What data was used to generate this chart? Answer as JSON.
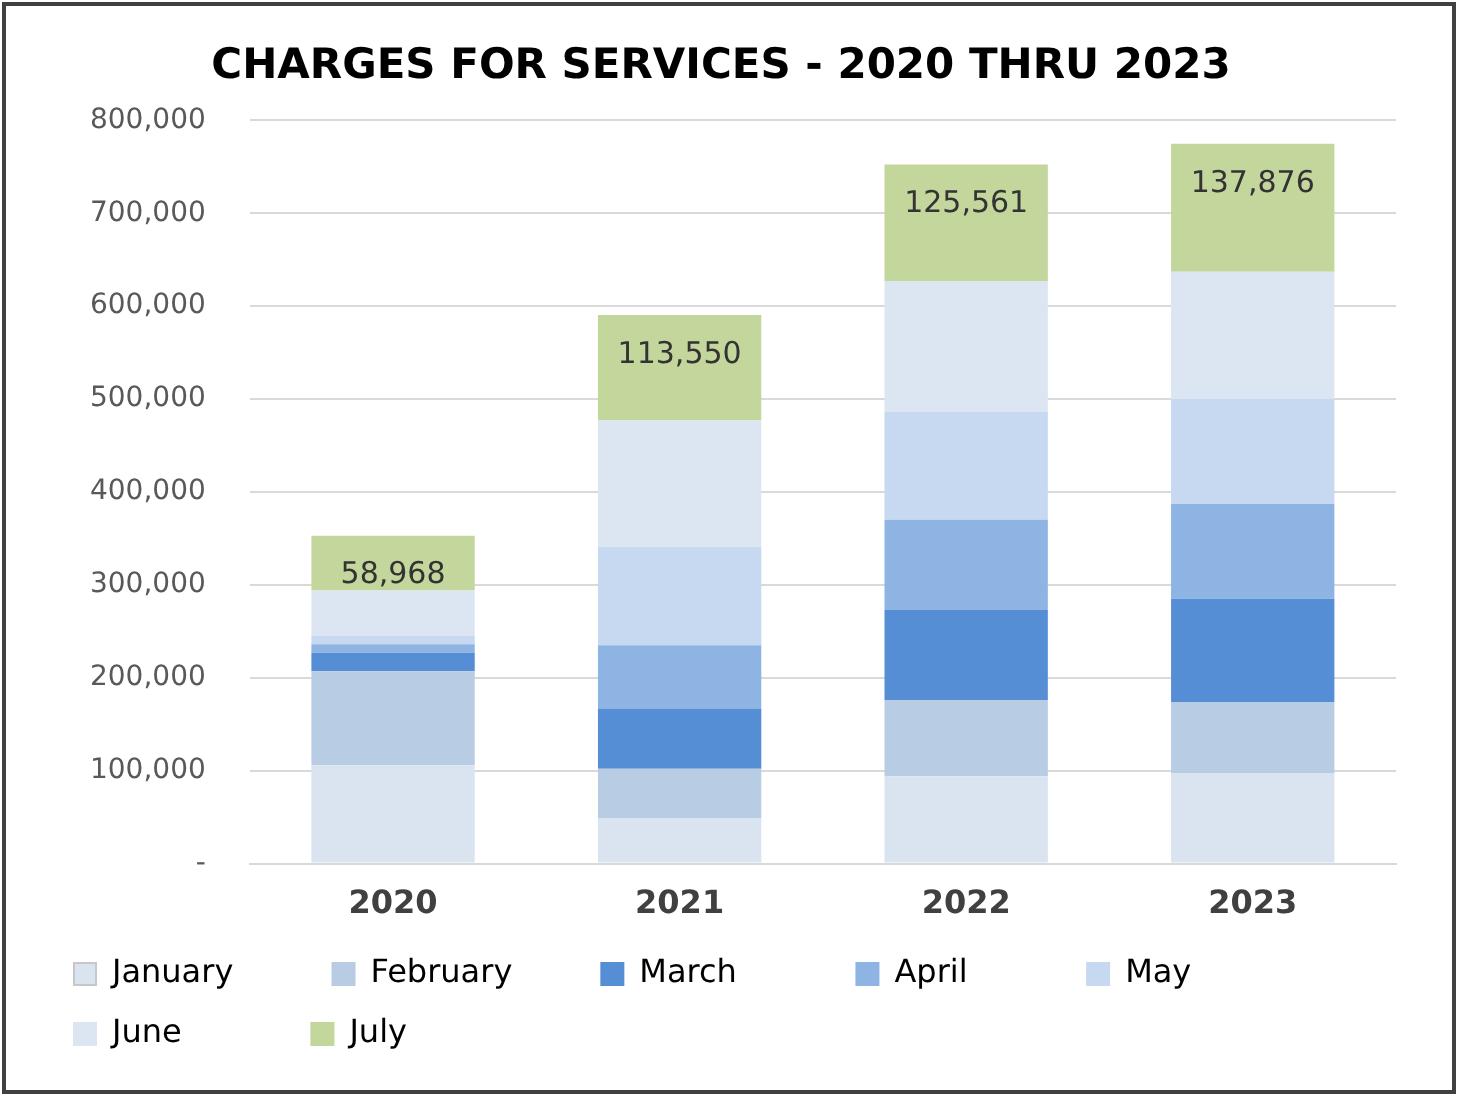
{
  "chart_data": {
    "type": "bar",
    "title": "CHARGES FOR SERVICES - 2020 THRU 2023",
    "stacked": true,
    "grid": "y",
    "legend": "bottom",
    "categories": [
      "2020",
      "2021",
      "2022",
      "2023"
    ],
    "series": [
      {
        "name": "January",
        "color": "#dae3f0",
        "values": [
          106000,
          49000,
          94000,
          97000
        ]
      },
      {
        "name": "February",
        "color": "#b8cce4",
        "values": [
          101000,
          53000,
          82000,
          77000
        ]
      },
      {
        "name": "March",
        "color": "#558ed5",
        "values": [
          20000,
          65000,
          97000,
          111000
        ]
      },
      {
        "name": "April",
        "color": "#8eb4e3",
        "values": [
          9000,
          68000,
          97000,
          102000
        ]
      },
      {
        "name": "May",
        "color": "#c6d9f1",
        "values": [
          9000,
          106000,
          116000,
          113000
        ]
      },
      {
        "name": "June",
        "color": "#dce6f2",
        "values": [
          49000,
          136000,
          141000,
          137000
        ]
      },
      {
        "name": "July",
        "color": "#c3d69b",
        "values": [
          58968,
          113550,
          125561,
          137876
        ],
        "value_labels": [
          "58,968",
          "113,550",
          "125,561",
          "137,876"
        ]
      }
    ],
    "ylim": [
      0,
      800000
    ],
    "yticks": [
      {
        "value": 0,
        "label": "-"
      },
      {
        "value": 100000,
        "label": "100,000"
      },
      {
        "value": 200000,
        "label": "200,000"
      },
      {
        "value": 300000,
        "label": "300,000"
      },
      {
        "value": 400000,
        "label": "400,000"
      },
      {
        "value": 500000,
        "label": "500,000"
      },
      {
        "value": 600000,
        "label": "600,000"
      },
      {
        "value": 700000,
        "label": "700,000"
      },
      {
        "value": 800000,
        "label": "800,000"
      }
    ]
  }
}
